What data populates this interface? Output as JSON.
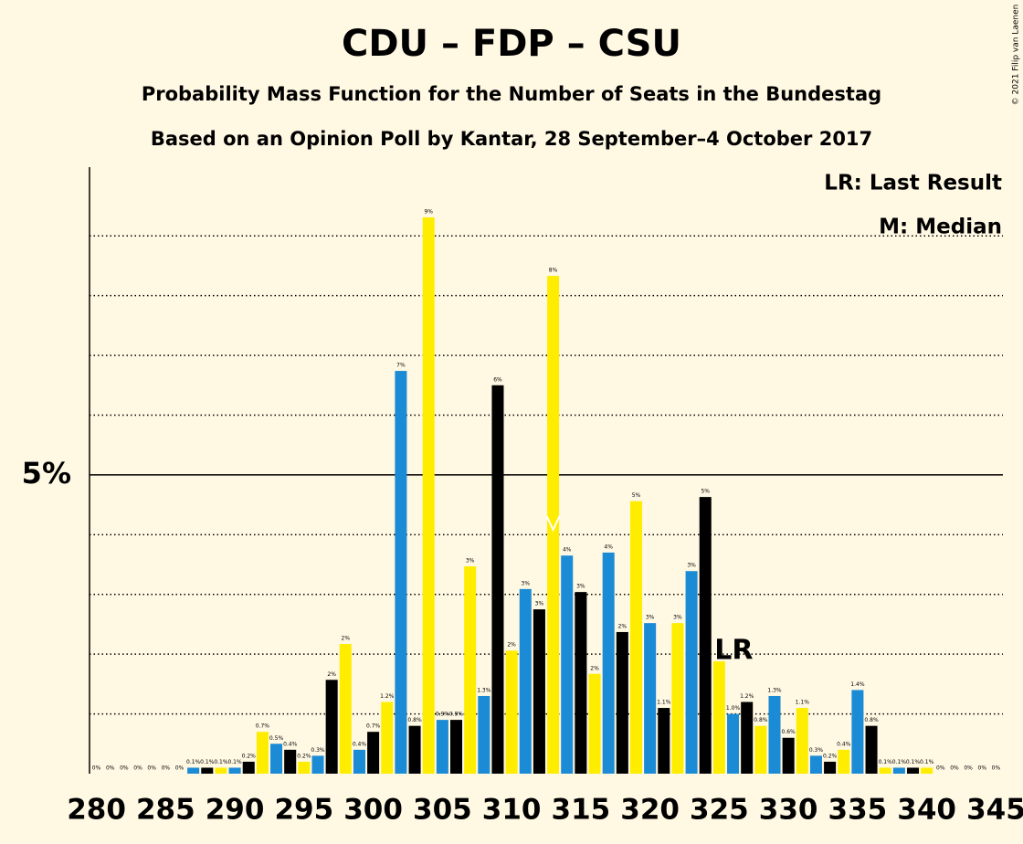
{
  "chart_data": {
    "type": "bar",
    "title": "CDU – FDP – CSU",
    "subtitle": "Probability Mass Function for the Number of Seats in the Bundestag",
    "subtitle2": "Based on an Opinion Poll by Kantar, 28 September–4 October 2017",
    "legend": [
      "LR: Last Result",
      "M: Median"
    ],
    "copyright": "© 2021 Filip van Laenen",
    "x": [
      280,
      281,
      282,
      283,
      284,
      285,
      286,
      287,
      288,
      289,
      290,
      291,
      292,
      293,
      294,
      295,
      296,
      297,
      298,
      299,
      300,
      301,
      302,
      303,
      304,
      305,
      306,
      307,
      308,
      309,
      310,
      311,
      312,
      313,
      314,
      315,
      316,
      317,
      318,
      319,
      320,
      321,
      322,
      323,
      324,
      325,
      326,
      327,
      328,
      329,
      330,
      331,
      332,
      333,
      334,
      335,
      336,
      337,
      338,
      339,
      340,
      341,
      342,
      343,
      344,
      345
    ],
    "values": [
      0,
      0,
      0,
      0,
      0,
      0,
      0,
      0.1,
      0.1,
      0.1,
      0.1,
      0.2,
      0.7,
      0.5,
      0.4,
      0.2,
      0.3,
      1.57,
      2.17,
      0.4,
      0.7,
      1.2,
      6.74,
      0.8,
      9.31,
      0.9,
      0.9,
      3.47,
      1.3,
      6.5,
      2.06,
      3.09,
      2.75,
      8.33,
      3.65,
      3.04,
      1.67,
      3.7,
      2.37,
      4.56,
      2.52,
      1.1,
      2.52,
      3.39,
      4.63,
      1.88,
      1.0,
      1.2,
      0.8,
      1.3,
      0.6,
      1.1,
      0.3,
      0.2,
      0.4,
      1.4,
      0.8,
      0.1,
      0.1,
      0.1,
      0.1,
      0,
      0,
      0,
      0,
      0
    ],
    "value_labels": [
      "0%",
      "0%",
      "0%",
      "0%",
      "0%",
      "0%",
      "0%",
      "0.1%",
      "0.1%",
      "0.1%",
      "0.1%",
      "0.2%",
      "0.7%",
      "0.5%",
      "0.4%",
      "0.2%",
      "0.3%",
      "2%",
      "2%",
      "0.4%",
      "0.7%",
      "1.2%",
      "7%",
      "0.8%",
      "9%",
      "0.9%",
      "0.9%",
      "3%",
      "1.3%",
      "6%",
      "2%",
      "3%",
      "3%",
      "8%",
      "4%",
      "3%",
      "2%",
      "4%",
      "2%",
      "5%",
      "3%",
      "1.1%",
      "3%",
      "3%",
      "5%",
      null,
      "1.0%",
      "1.2%",
      "0.8%",
      "1.3%",
      "0.6%",
      "1.1%",
      "0.3%",
      "0.2%",
      "0.4%",
      "1.4%",
      "0.8%",
      "0.1%",
      "0.1%",
      "0.1%",
      "0.1%",
      "0%",
      "0%",
      "0%",
      "0%",
      "0%"
    ],
    "bar_colors": [
      "#ffed00",
      "#1b8bd6",
      "#000000"
    ],
    "xlim": [
      279.5,
      345.5
    ],
    "xticks": [
      280,
      285,
      290,
      295,
      300,
      305,
      310,
      315,
      320,
      325,
      330,
      335,
      340,
      345
    ],
    "ylim": [
      0,
      10.15
    ],
    "yticks": [
      {
        "value": 5,
        "label": "5%"
      }
    ],
    "minor_yticks": [
      1,
      2,
      3,
      4,
      6,
      7,
      8,
      9
    ],
    "last_result": {
      "x": 325,
      "label": "LR"
    },
    "median": 313
  }
}
